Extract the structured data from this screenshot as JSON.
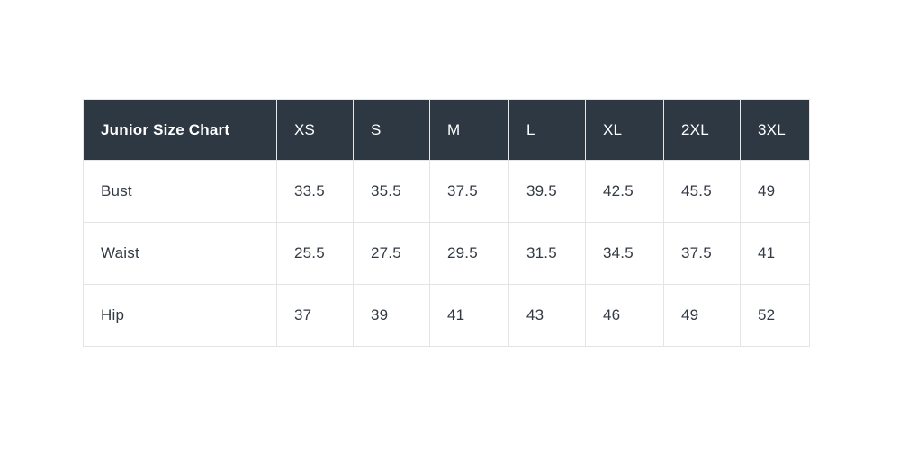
{
  "table": {
    "title": "Junior Size Chart",
    "columns": [
      "XS",
      "S",
      "M",
      "L",
      "XL",
      "2XL",
      "3XL"
    ],
    "rows": [
      {
        "label": "Bust",
        "values": [
          "33.5",
          "35.5",
          "37.5",
          "39.5",
          "42.5",
          "45.5",
          "49"
        ]
      },
      {
        "label": "Waist",
        "values": [
          "25.5",
          "27.5",
          "29.5",
          "31.5",
          "34.5",
          "37.5",
          "41"
        ]
      },
      {
        "label": "Hip",
        "values": [
          "37",
          "39",
          "41",
          "43",
          "46",
          "49",
          "52"
        ]
      }
    ],
    "colors": {
      "header_bg": "#2e3842",
      "header_text": "#ffffff",
      "body_text": "#333a44",
      "border": "#e4e4e4",
      "page_bg": "#ffffff"
    }
  }
}
